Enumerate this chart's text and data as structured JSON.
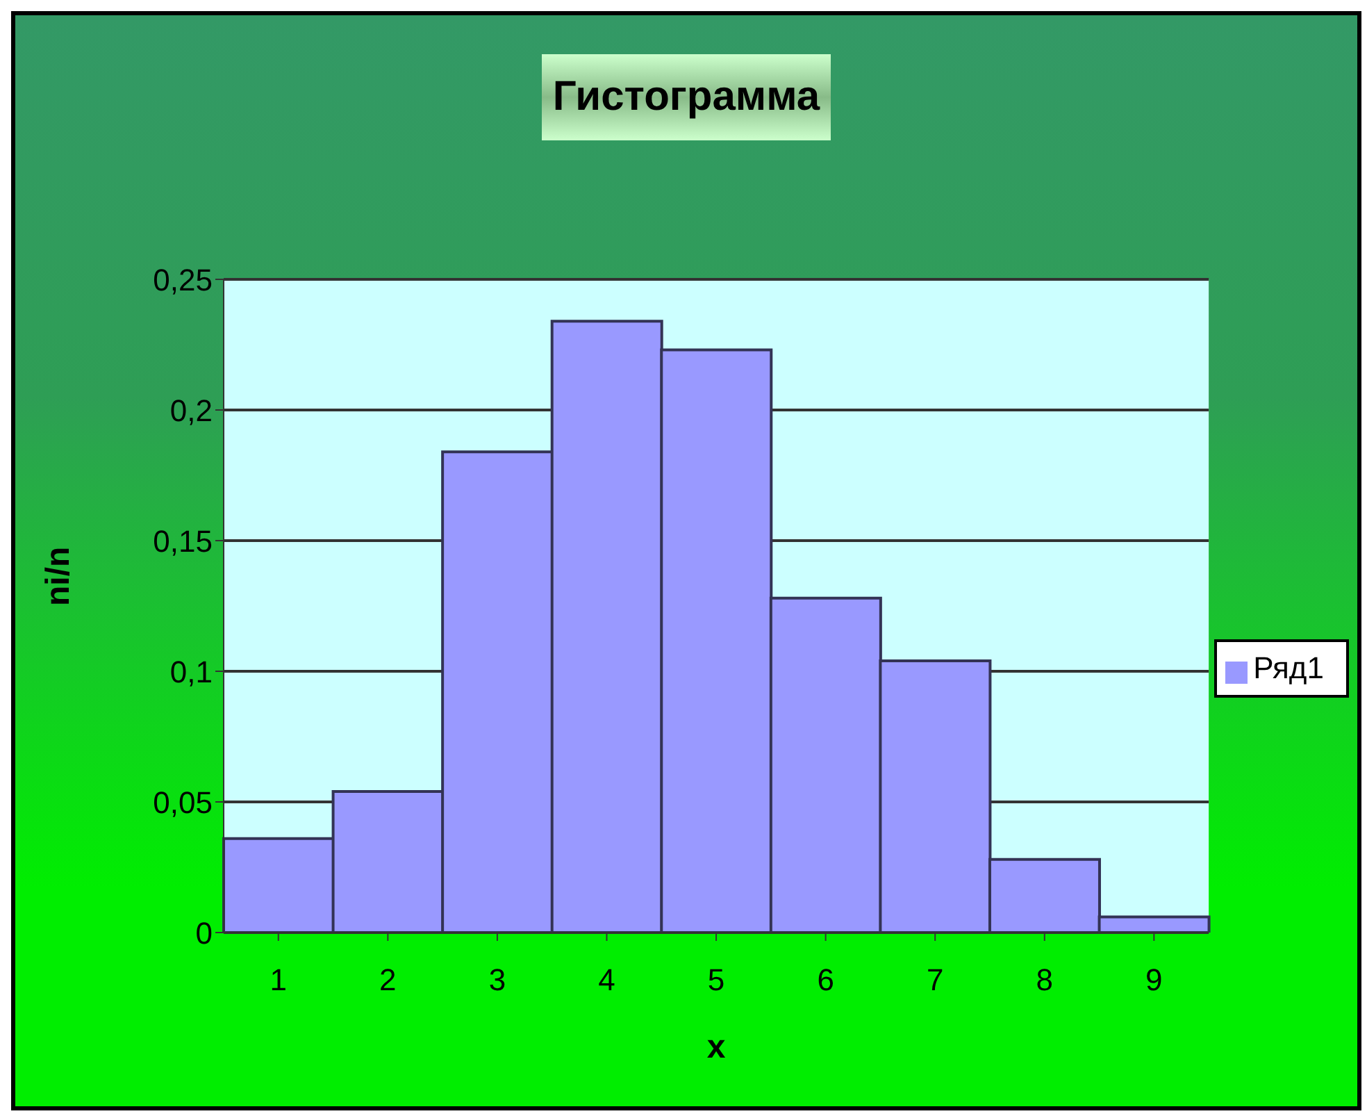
{
  "chart_data": {
    "type": "bar",
    "title": "Гистограмма",
    "xlabel": "x",
    "ylabel": "ni/n",
    "categories": [
      "1",
      "2",
      "3",
      "4",
      "5",
      "6",
      "7",
      "8",
      "9"
    ],
    "series": [
      {
        "name": "Ряд1",
        "color": "#9999ff",
        "values": [
          0.036,
          0.054,
          0.184,
          0.234,
          0.223,
          0.128,
          0.104,
          0.028,
          0.006
        ]
      }
    ],
    "ylim": [
      0,
      0.25
    ],
    "yticks": [
      0,
      {
        "value": 0.05,
        "label": "0,05"
      },
      {
        "value": 0.1,
        "label": "0,1"
      },
      {
        "value": 0.15,
        "label": "0,15"
      },
      {
        "value": 0.2,
        "label": "0,2"
      },
      {
        "value": 0.25,
        "label": "0,25"
      }
    ],
    "grid": "y",
    "legend": "right"
  }
}
